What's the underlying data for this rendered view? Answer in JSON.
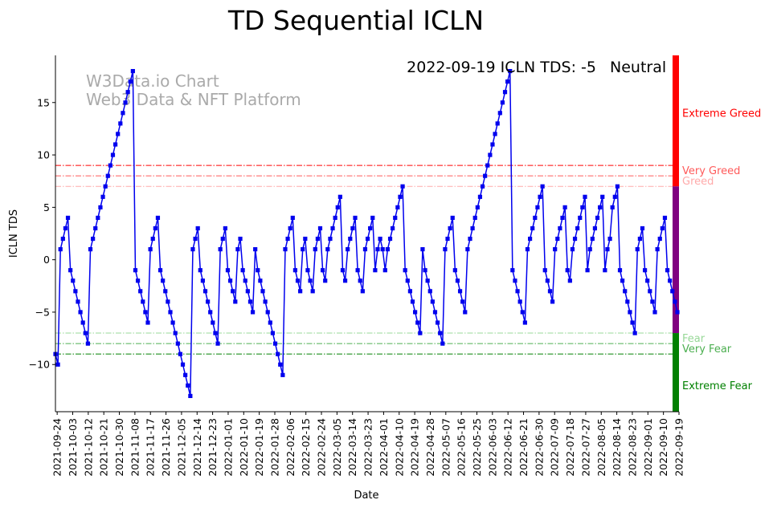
{
  "chart_data": {
    "type": "line",
    "title": "TD Sequential ICLN",
    "xlabel": "Date",
    "ylabel": "ICLN TDS",
    "ylim": [
      -14.5,
      19.5
    ],
    "yticks": [
      -10,
      -5,
      0,
      5,
      10,
      15
    ],
    "xticks": [
      "2021-09-24",
      "2021-10-03",
      "2021-10-12",
      "2021-10-21",
      "2021-10-30",
      "2021-11-08",
      "2021-11-17",
      "2021-11-26",
      "2021-12-05",
      "2021-12-14",
      "2021-12-23",
      "2022-01-01",
      "2022-01-10",
      "2022-01-19",
      "2022-01-28",
      "2022-02-06",
      "2022-02-15",
      "2022-02-24",
      "2022-03-05",
      "2022-03-14",
      "2022-03-23",
      "2022-04-01",
      "2022-04-10",
      "2022-04-19",
      "2022-04-28",
      "2022-05-07",
      "2022-05-16",
      "2022-05-25",
      "2022-06-03",
      "2022-06-12",
      "2022-06-21",
      "2022-06-30",
      "2022-07-09",
      "2022-07-18",
      "2022-07-27",
      "2022-08-05",
      "2022-08-14",
      "2022-08-23",
      "2022-09-01",
      "2022-09-10",
      "2022-09-19"
    ],
    "x_start": "2021-09-23",
    "x_end": "2022-09-19",
    "series": [
      {
        "color": "#0000ee",
        "values": [
          -9,
          -10,
          1,
          2,
          3,
          4,
          -1,
          -2,
          -3,
          -4,
          -5,
          -6,
          -7,
          -8,
          1,
          2,
          3,
          4,
          5,
          6,
          7,
          8,
          9,
          10,
          11,
          12,
          13,
          14,
          15,
          16,
          17,
          18,
          -1,
          -2,
          -3,
          -4,
          -5,
          -6,
          1,
          2,
          3,
          4,
          -1,
          -2,
          -3,
          -4,
          -5,
          -6,
          -7,
          -8,
          -9,
          -10,
          -11,
          -12,
          -13,
          1,
          2,
          3,
          -1,
          -2,
          -3,
          -4,
          -5,
          -6,
          -7,
          -8,
          1,
          2,
          3,
          -1,
          -2,
          -3,
          -4,
          1,
          2,
          -1,
          -2,
          -3,
          -4,
          -5,
          1,
          -1,
          -2,
          -3,
          -4,
          -5,
          -6,
          -7,
          -8,
          -9,
          -10,
          -11,
          1,
          2,
          3,
          4,
          -1,
          -2,
          -3,
          1,
          2,
          -1,
          -2,
          -3,
          1,
          2,
          3,
          -1,
          -2,
          1,
          2,
          3,
          4,
          5,
          6,
          -1,
          -2,
          1,
          2,
          3,
          4,
          -1,
          -2,
          -3,
          1,
          2,
          3,
          4,
          -1,
          1,
          2,
          1,
          -1,
          1,
          2,
          3,
          4,
          5,
          6,
          7,
          -1,
          -2,
          -3,
          -4,
          -5,
          -6,
          -7,
          1,
          -1,
          -2,
          -3,
          -4,
          -5,
          -6,
          -7,
          -8,
          1,
          2,
          3,
          4,
          -1,
          -2,
          -3,
          -4,
          -5,
          1,
          2,
          3,
          4,
          5,
          6,
          7,
          8,
          9,
          10,
          11,
          12,
          13,
          14,
          15,
          16,
          17,
          18,
          -1,
          -2,
          -3,
          -4,
          -5,
          -6,
          1,
          2,
          3,
          4,
          5,
          6,
          7,
          -1,
          -2,
          -3,
          -4,
          1,
          2,
          3,
          4,
          5,
          -1,
          -2,
          1,
          2,
          3,
          4,
          5,
          6,
          -1,
          1,
          2,
          3,
          4,
          5,
          6,
          -1,
          1,
          2,
          5,
          6,
          7,
          -1,
          -2,
          -3,
          -4,
          -5,
          -6,
          -7,
          1,
          2,
          3,
          -1,
          -2,
          -3,
          -4,
          -5,
          1,
          2,
          3,
          4,
          -1,
          -2,
          -3,
          -4,
          -5
        ]
      }
    ],
    "reference_lines": [
      {
        "y": 9,
        "color": "#ff0000",
        "label": "Extreme Greed"
      },
      {
        "y": 8,
        "color": "#ff5a5a",
        "label": "Very Greed"
      },
      {
        "y": 7,
        "color": "#ffaaaa",
        "label": "Greed"
      },
      {
        "y": -7,
        "color": "#98d898",
        "label": "Fear"
      },
      {
        "y": -8,
        "color": "#4caf50",
        "label": "Very Fear"
      },
      {
        "y": -9,
        "color": "#008000",
        "label": "Extreme Fear"
      }
    ],
    "zone_bar": [
      {
        "from": 7,
        "to": 19.5,
        "color": "#ff0000"
      },
      {
        "from": -7,
        "to": 7,
        "color": "#800080"
      },
      {
        "from": -14.5,
        "to": -7,
        "color": "#008000"
      }
    ],
    "zone_labels": [
      {
        "text": "Extreme Greed",
        "y": 14,
        "color": "#ff0000"
      },
      {
        "text": "Very Greed",
        "y": 8.5,
        "color": "#ff5a5a"
      },
      {
        "text": "Greed",
        "y": 7.5,
        "color": "#ffaaaa"
      },
      {
        "text": "Fear",
        "y": -7.5,
        "color": "#98d898"
      },
      {
        "text": "Very Fear",
        "y": -8.5,
        "color": "#4caf50"
      },
      {
        "text": "Extreme Fear",
        "y": -12,
        "color": "#008000"
      }
    ],
    "annotation": {
      "text": "2022-09-19 ICLN TDS: -5",
      "status": "Neutral",
      "status_color": "#800080"
    },
    "watermark": [
      "W3Data.io Chart",
      "Web3 Data & NFT Platform"
    ]
  }
}
